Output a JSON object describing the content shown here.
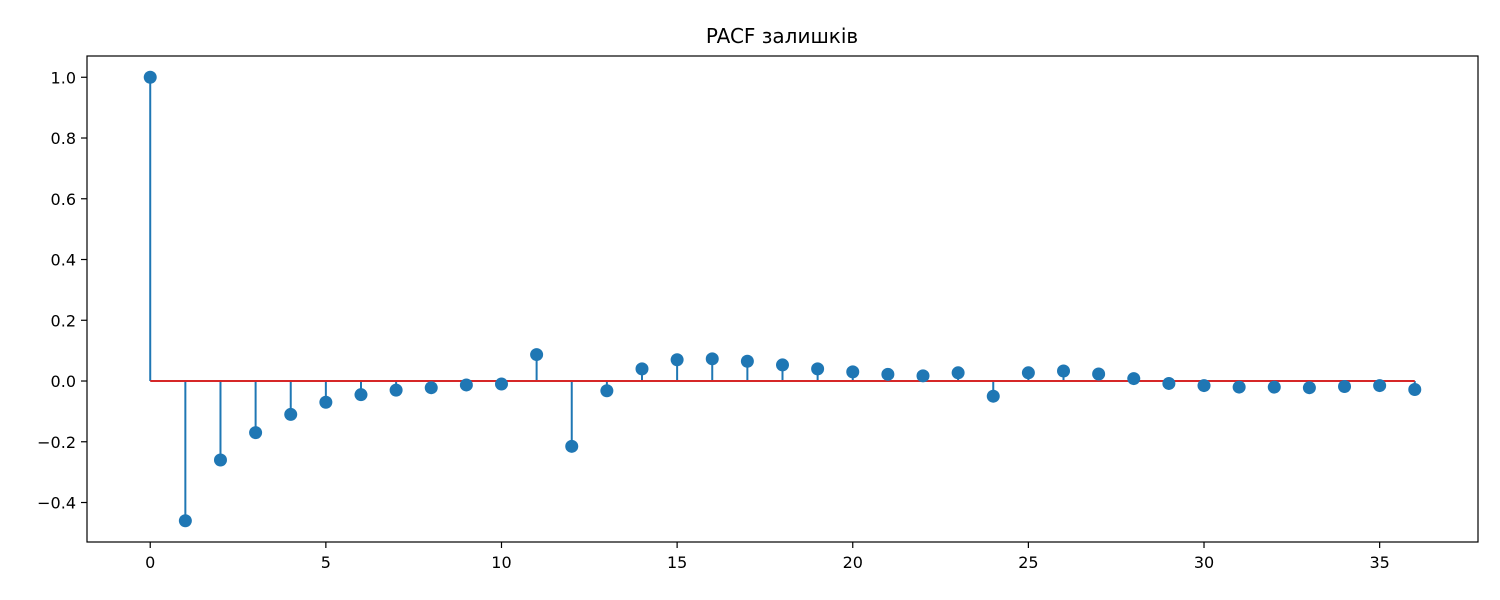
{
  "chart_data": {
    "type": "stem",
    "title": "PACF залишків",
    "xlabel": "",
    "ylabel": "",
    "xlim": [
      -1.8,
      37.8
    ],
    "ylim": [
      -0.53,
      1.07
    ],
    "x": [
      0,
      1,
      2,
      3,
      4,
      5,
      6,
      7,
      8,
      9,
      10,
      11,
      12,
      13,
      14,
      15,
      16,
      17,
      18,
      19,
      20,
      21,
      22,
      23,
      24,
      25,
      26,
      27,
      28,
      29,
      30,
      31,
      32,
      33,
      34,
      35,
      36
    ],
    "values": [
      1.0,
      -0.46,
      -0.26,
      -0.17,
      -0.11,
      -0.07,
      -0.045,
      -0.03,
      -0.022,
      -0.013,
      -0.01,
      0.087,
      -0.215,
      -0.032,
      0.04,
      0.07,
      0.073,
      0.065,
      0.053,
      0.04,
      0.03,
      0.022,
      0.017,
      0.027,
      -0.05,
      0.027,
      0.033,
      0.023,
      0.008,
      -0.008,
      -0.015,
      -0.02,
      -0.02,
      -0.022,
      -0.018,
      -0.015,
      -0.028
    ],
    "x_ticks": [
      0,
      5,
      10,
      15,
      20,
      25,
      30,
      35
    ],
    "x_tick_labels": [
      "0",
      "5",
      "10",
      "15",
      "20",
      "25",
      "30",
      "35"
    ],
    "y_ticks": [
      -0.4,
      -0.2,
      0.0,
      0.2,
      0.4,
      0.6,
      0.8,
      1.0
    ],
    "y_tick_labels": [
      "−0.4",
      "−0.2",
      "0.0",
      "0.2",
      "0.4",
      "0.6",
      "0.8",
      "1.0"
    ],
    "baseline": 0,
    "colors": {
      "stem": "#1f77b4",
      "marker": "#1f77b4",
      "baseline": "#d62728",
      "axes": "#000000"
    },
    "grid": false,
    "legend": "none"
  }
}
